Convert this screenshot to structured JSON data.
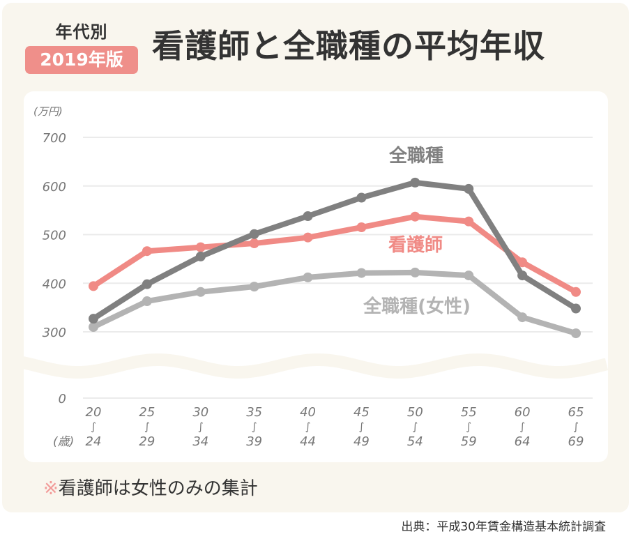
{
  "header": {
    "category_label": "年代別",
    "edition_badge": "2019年版",
    "title": "看護師と全職種の平均年収"
  },
  "footer": {
    "note_mark": "※",
    "note_text": "看護師は女性のみの集計",
    "source": "出典：平成30年賃金構造基本統計調査"
  },
  "colors": {
    "background_panel": "#f9f6ee",
    "badge": "#ef8f8a",
    "nurse_series": "#f08a85",
    "all_series": "#808080",
    "female_series": "#b3b3b3",
    "title_text": "#333333"
  },
  "chart_data": {
    "type": "line",
    "title": "看護師と全職種の平均年収",
    "ylabel": "(万円)",
    "xlabel": "(歳)",
    "ylim": [
      0,
      700
    ],
    "y_axis_break": [
      0,
      300
    ],
    "yticks": [
      0,
      300,
      400,
      500,
      600,
      700
    ],
    "grid": true,
    "categories": [
      {
        "from": "20",
        "to": "24"
      },
      {
        "from": "25",
        "to": "29"
      },
      {
        "from": "30",
        "to": "34"
      },
      {
        "from": "35",
        "to": "39"
      },
      {
        "from": "40",
        "to": "44"
      },
      {
        "from": "45",
        "to": "49"
      },
      {
        "from": "50",
        "to": "54"
      },
      {
        "from": "55",
        "to": "59"
      },
      {
        "from": "60",
        "to": "64"
      },
      {
        "from": "65",
        "to": "69"
      }
    ],
    "range_mark": "∫",
    "series": [
      {
        "name": "全職種",
        "key": "all",
        "color": "#808080",
        "values": [
          327,
          398,
          455,
          501,
          538,
          576,
          607,
          594,
          416,
          348
        ]
      },
      {
        "name": "看護師",
        "key": "nurse",
        "color": "#f08a85",
        "values": [
          394,
          466,
          474,
          482,
          494,
          515,
          537,
          527,
          443,
          382
        ]
      },
      {
        "name": "全職種(女性)",
        "key": "female",
        "color": "#b3b3b3",
        "values": [
          310,
          363,
          382,
          393,
          412,
          421,
          422,
          416,
          330,
          297
        ]
      }
    ],
    "series_labels": [
      {
        "text": "全職種",
        "series": "all"
      },
      {
        "text": "看護師",
        "series": "nurse"
      },
      {
        "text": "全職種(女性)",
        "series": "female"
      }
    ]
  }
}
